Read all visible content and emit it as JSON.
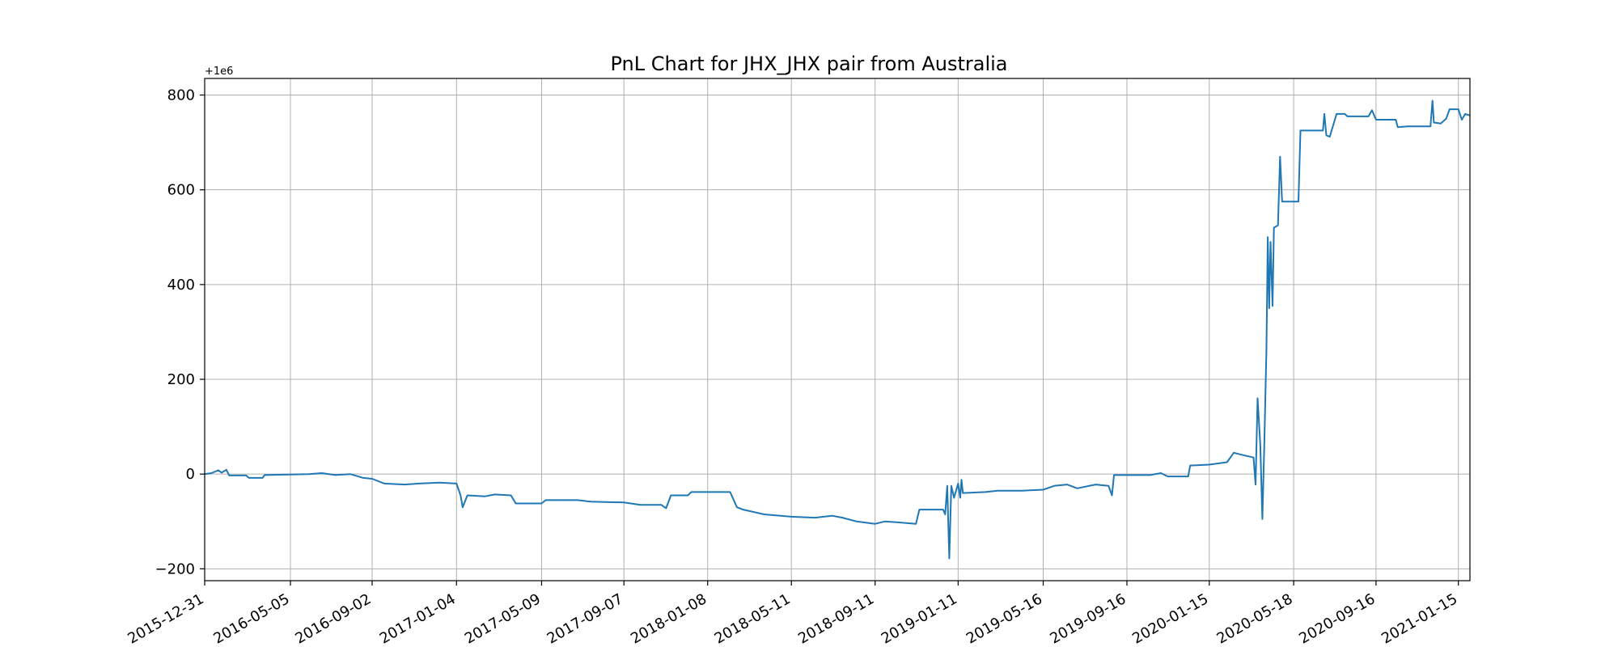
{
  "chart_data": {
    "type": "line",
    "title": "PnL Chart for JHX_JHX pair from Australia",
    "xlabel": "",
    "ylabel": "",
    "y_offset_label": "+1e6",
    "y_offset": 1000000,
    "xlim": [
      "2015-12-31",
      "2021-02-01"
    ],
    "ylim": [
      -225,
      835
    ],
    "grid": true,
    "legend": "none",
    "colors": {
      "line": "#1f77b4",
      "grid": "#b0b0b0"
    },
    "x_ticks": [
      "2015-12-31",
      "2016-05-05",
      "2016-09-02",
      "2017-01-04",
      "2017-05-09",
      "2017-09-07",
      "2018-01-08",
      "2018-05-11",
      "2018-09-11",
      "2019-01-11",
      "2019-05-16",
      "2019-09-16",
      "2020-01-15",
      "2020-05-18",
      "2020-09-16",
      "2021-01-15"
    ],
    "y_ticks": [
      -200,
      0,
      200,
      400,
      600,
      800
    ],
    "y_tick_labels": [
      "−200",
      "0",
      "200",
      "400",
      "600",
      "800"
    ],
    "series": [
      {
        "points": [
          [
            "2015-12-31",
            0
          ],
          [
            "2016-01-10",
            2
          ],
          [
            "2016-01-20",
            8
          ],
          [
            "2016-01-25",
            3
          ],
          [
            "2016-02-01",
            9
          ],
          [
            "2016-02-05",
            -3
          ],
          [
            "2016-03-01",
            -3
          ],
          [
            "2016-03-05",
            -8
          ],
          [
            "2016-03-25",
            -8
          ],
          [
            "2016-03-28",
            -2
          ],
          [
            "2016-06-01",
            0
          ],
          [
            "2016-06-20",
            2
          ],
          [
            "2016-07-10",
            -2
          ],
          [
            "2016-08-01",
            0
          ],
          [
            "2016-08-20",
            -8
          ],
          [
            "2016-09-02",
            -10
          ],
          [
            "2016-09-20",
            -20
          ],
          [
            "2016-10-20",
            -22
          ],
          [
            "2016-11-10",
            -20
          ],
          [
            "2016-12-10",
            -18
          ],
          [
            "2017-01-04",
            -20
          ],
          [
            "2017-01-10",
            -45
          ],
          [
            "2017-01-13",
            -70
          ],
          [
            "2017-01-20",
            -45
          ],
          [
            "2017-02-15",
            -47
          ],
          [
            "2017-03-01",
            -43
          ],
          [
            "2017-03-25",
            -45
          ],
          [
            "2017-04-01",
            -62
          ],
          [
            "2017-05-09",
            -62
          ],
          [
            "2017-05-15",
            -55
          ],
          [
            "2017-07-01",
            -55
          ],
          [
            "2017-07-20",
            -58
          ],
          [
            "2017-09-07",
            -60
          ],
          [
            "2017-10-01",
            -65
          ],
          [
            "2017-11-01",
            -65
          ],
          [
            "2017-11-08",
            -72
          ],
          [
            "2017-11-15",
            -45
          ],
          [
            "2017-12-10",
            -45
          ],
          [
            "2017-12-15",
            -38
          ],
          [
            "2018-01-08",
            -38
          ],
          [
            "2018-02-10",
            -38
          ],
          [
            "2018-02-20",
            -70
          ],
          [
            "2018-03-01",
            -75
          ],
          [
            "2018-04-01",
            -85
          ],
          [
            "2018-05-11",
            -90
          ],
          [
            "2018-06-15",
            -92
          ],
          [
            "2018-07-10",
            -88
          ],
          [
            "2018-07-25",
            -92
          ],
          [
            "2018-08-15",
            -100
          ],
          [
            "2018-09-11",
            -105
          ],
          [
            "2018-09-25",
            -100
          ],
          [
            "2018-10-15",
            -102
          ],
          [
            "2018-11-10",
            -105
          ],
          [
            "2018-11-15",
            -75
          ],
          [
            "2018-12-20",
            -75
          ],
          [
            "2018-12-23",
            -85
          ],
          [
            "2018-12-26",
            -25
          ],
          [
            "2018-12-29",
            -178
          ],
          [
            "2019-01-01",
            -25
          ],
          [
            "2019-01-05",
            -50
          ],
          [
            "2019-01-11",
            -20
          ],
          [
            "2019-01-14",
            -50
          ],
          [
            "2019-01-16",
            -12
          ],
          [
            "2019-01-18",
            -40
          ],
          [
            "2019-02-20",
            -38
          ],
          [
            "2019-03-10",
            -35
          ],
          [
            "2019-04-15",
            -35
          ],
          [
            "2019-05-16",
            -33
          ],
          [
            "2019-06-01",
            -25
          ],
          [
            "2019-06-20",
            -22
          ],
          [
            "2019-07-05",
            -30
          ],
          [
            "2019-08-01",
            -22
          ],
          [
            "2019-08-20",
            -25
          ],
          [
            "2019-08-25",
            -45
          ],
          [
            "2019-08-28",
            -2
          ],
          [
            "2019-10-20",
            -2
          ],
          [
            "2019-11-05",
            2
          ],
          [
            "2019-11-15",
            -5
          ],
          [
            "2019-12-15",
            -5
          ],
          [
            "2019-12-18",
            18
          ],
          [
            "2020-01-15",
            20
          ],
          [
            "2020-02-10",
            25
          ],
          [
            "2020-02-20",
            45
          ],
          [
            "2020-03-05",
            40
          ],
          [
            "2020-03-20",
            35
          ],
          [
            "2020-03-23",
            -22
          ],
          [
            "2020-03-26",
            160
          ],
          [
            "2020-03-30",
            60
          ],
          [
            "2020-04-02",
            -95
          ],
          [
            "2020-04-05",
            70
          ],
          [
            "2020-04-08",
            260
          ],
          [
            "2020-04-10",
            500
          ],
          [
            "2020-04-12",
            350
          ],
          [
            "2020-04-14",
            490
          ],
          [
            "2020-04-17",
            355
          ],
          [
            "2020-04-19",
            520
          ],
          [
            "2020-04-25",
            525
          ],
          [
            "2020-04-28",
            670
          ],
          [
            "2020-05-01",
            575
          ],
          [
            "2020-05-25",
            575
          ],
          [
            "2020-05-28",
            725
          ],
          [
            "2020-06-30",
            725
          ],
          [
            "2020-07-02",
            760
          ],
          [
            "2020-07-05",
            715
          ],
          [
            "2020-07-10",
            712
          ],
          [
            "2020-07-20",
            760
          ],
          [
            "2020-08-01",
            760
          ],
          [
            "2020-08-05",
            755
          ],
          [
            "2020-09-05",
            755
          ],
          [
            "2020-09-10",
            768
          ],
          [
            "2020-09-16",
            748
          ],
          [
            "2020-10-15",
            748
          ],
          [
            "2020-10-18",
            732
          ],
          [
            "2020-11-01",
            734
          ],
          [
            "2020-12-05",
            734
          ],
          [
            "2020-12-08",
            788
          ],
          [
            "2020-12-10",
            742
          ],
          [
            "2020-12-20",
            740
          ],
          [
            "2020-12-28",
            750
          ],
          [
            "2021-01-02",
            770
          ],
          [
            "2021-01-15",
            770
          ],
          [
            "2021-01-20",
            748
          ],
          [
            "2021-01-25",
            760
          ],
          [
            "2021-02-01",
            757
          ]
        ]
      }
    ]
  }
}
